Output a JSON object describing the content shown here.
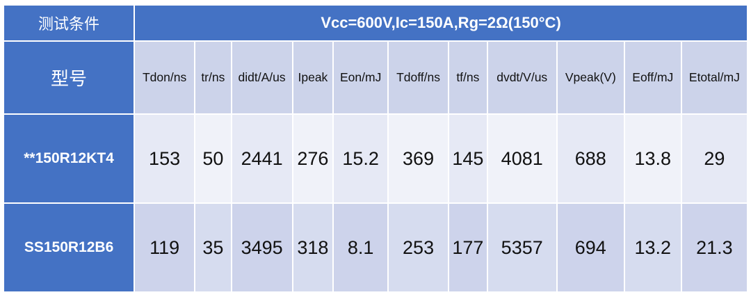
{
  "table": {
    "condition_label": "测试条件",
    "condition_value": "Vcc=600V,Ic=150A,Rg=2Ω(150°C)",
    "model_label": "型号",
    "columns": [
      "Tdon/ns",
      "tr/ns",
      "didt/A/us",
      "Ipeak",
      "Eon/mJ",
      "Tdoff/ns",
      "tf/ns",
      "dvdt/V/us",
      "Vpeak(V)",
      "Eoff/mJ",
      "Etotal/mJ"
    ],
    "rows": [
      {
        "model": "**150R12KT4",
        "values": [
          "153",
          "50",
          "2441",
          "276",
          "15.2",
          "369",
          "145",
          "4081",
          "688",
          "13.8",
          "29"
        ]
      },
      {
        "model": "SS150R12B6",
        "values": [
          "119",
          "35",
          "3495",
          "318",
          "8.1",
          "253",
          "177",
          "5357",
          "694",
          "13.2",
          "21.3"
        ]
      }
    ]
  },
  "colors": {
    "header_blue": "#4472c4",
    "column_header_bg": "#ccd3ea",
    "row1_bg": "#e6e9f5",
    "row2_bg": "#cdd3eb"
  }
}
